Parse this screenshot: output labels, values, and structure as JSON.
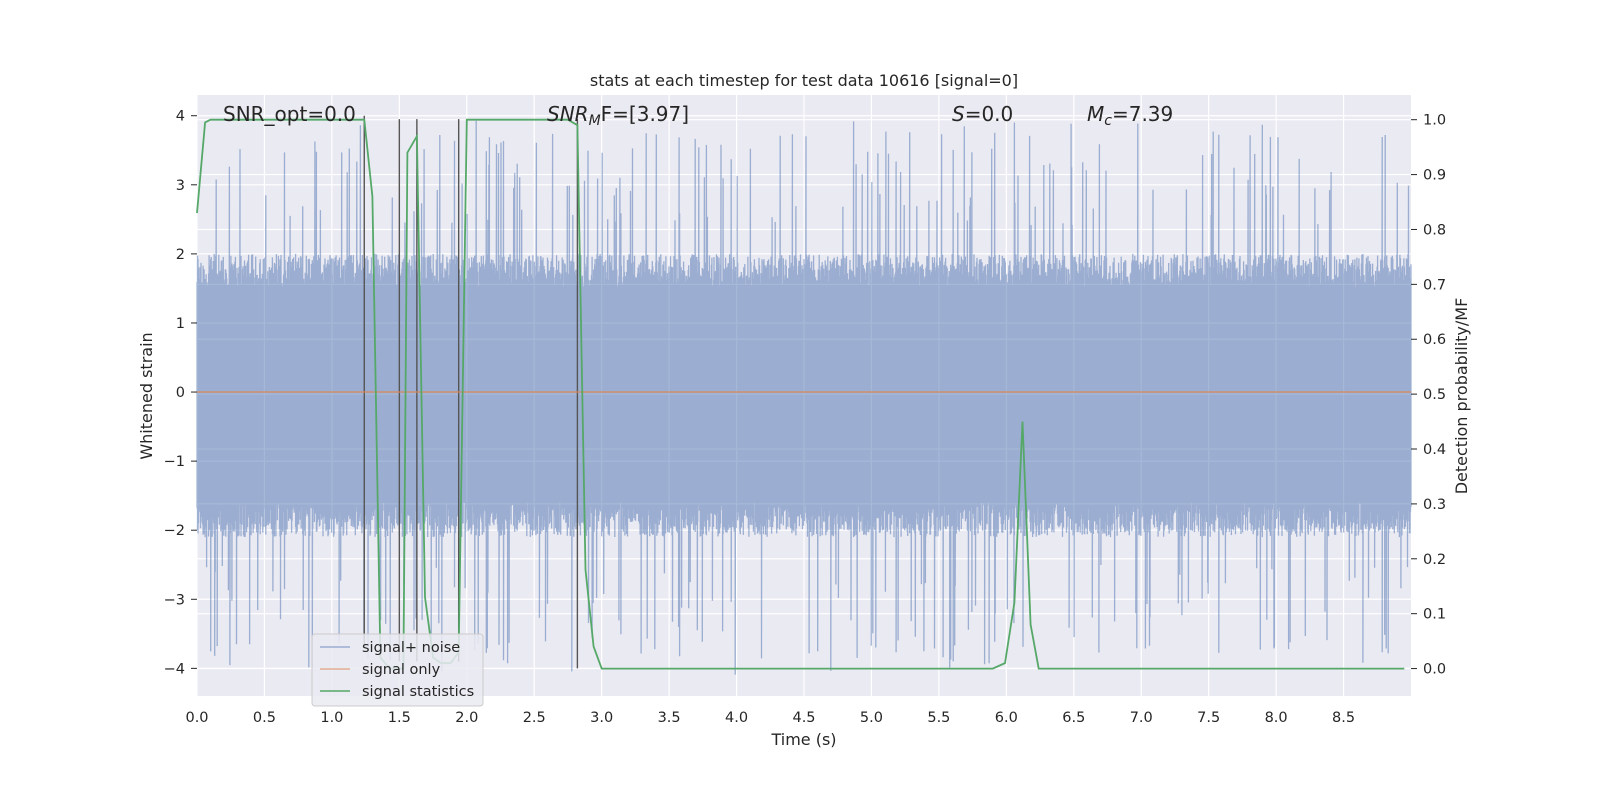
{
  "chart_data": {
    "type": "line",
    "title": "stats at each timestep for test data 10616 [signal=0]",
    "xlabel": "Time (s)",
    "ylabel_left": "Whitened strain",
    "ylabel_right": "Detection probability/MF",
    "xlim": [
      0.0,
      9.0
    ],
    "ylim_left": [
      -4.4,
      4.3
    ],
    "ylim_right": [
      -0.05,
      1.045
    ],
    "x_ticks": [
      "0.0",
      "0.5",
      "1.0",
      "1.5",
      "2.0",
      "2.5",
      "3.0",
      "3.5",
      "4.0",
      "4.5",
      "5.0",
      "5.5",
      "6.0",
      "6.5",
      "7.0",
      "7.5",
      "8.0",
      "8.5"
    ],
    "y_ticks_left": [
      "4",
      "3",
      "2",
      "1",
      "0",
      "−1",
      "−2",
      "−3",
      "−4"
    ],
    "y_ticks_right": [
      "1.0",
      "0.9",
      "0.8",
      "0.7",
      "0.6",
      "0.5",
      "0.4",
      "0.3",
      "0.2",
      "0.1",
      "0.0"
    ],
    "grid": true,
    "background": "#eaeaf2",
    "annotations": {
      "snr_opt": "SNR_opt=0.0",
      "snr_mf_base": "SNR",
      "snr_mf_sub": "M",
      "snr_mf_rest": "F=[3.97]",
      "s_var": "S",
      "s_rest": "=0.0",
      "mc_base": "M",
      "mc_sub": "c",
      "mc_rest": "=7.39"
    },
    "legend": {
      "placement": "lower-left",
      "entries": [
        "signal+ noise",
        "signal only",
        "signal statistics"
      ]
    },
    "series": [
      {
        "name": "signal+ noise",
        "axis": "left",
        "color": "#4c72b0",
        "envelope": {
          "x_range": [
            0.0,
            9.0
          ],
          "typical_upper": 2.0,
          "typical_lower": -2.1,
          "max_peak": 3.95,
          "min_trough": -4.1
        }
      },
      {
        "name": "signal only",
        "axis": "left",
        "color": "#dd8452",
        "x": [
          0.0,
          9.0
        ],
        "y": [
          0.0,
          0.0
        ]
      },
      {
        "name": "signal statistics",
        "axis": "right",
        "color": "#55a868",
        "x": [
          0.0,
          0.06,
          0.1,
          0.2,
          0.5,
          1.0,
          1.24,
          1.3,
          1.36,
          1.43,
          1.48,
          1.53,
          1.56,
          1.63,
          1.69,
          1.75,
          1.81,
          1.88,
          1.94,
          2.0,
          2.2,
          2.5,
          2.75,
          2.82,
          2.88,
          2.94,
          3.0,
          3.5,
          4.0,
          5.0,
          5.5,
          5.9,
          5.99,
          6.06,
          6.12,
          6.18,
          6.24,
          6.3,
          7.0,
          8.0,
          8.95
        ],
        "y": [
          0.83,
          0.995,
          1.0,
          1.0,
          1.0,
          1.0,
          1.0,
          0.86,
          0.02,
          0.0,
          0.0,
          0.0,
          0.94,
          0.97,
          0.13,
          0.02,
          0.01,
          0.01,
          0.03,
          1.0,
          1.0,
          1.0,
          1.0,
          0.99,
          0.18,
          0.04,
          0.0,
          0.0,
          0.0,
          0.0,
          0.0,
          0.0,
          0.01,
          0.12,
          0.45,
          0.08,
          0.0,
          0.0,
          0.0,
          0.0,
          0.0
        ]
      },
      {
        "name": "mf-markers",
        "axis": "left",
        "color": "#555555",
        "x": [
          1.24,
          1.5,
          1.63,
          1.94,
          2.82
        ],
        "top": [
          4.0,
          3.95,
          3.95,
          3.95,
          3.95
        ],
        "bottom": [
          -3.7,
          -3.9,
          -3.9,
          -3.9,
          -4.0
        ]
      }
    ]
  }
}
